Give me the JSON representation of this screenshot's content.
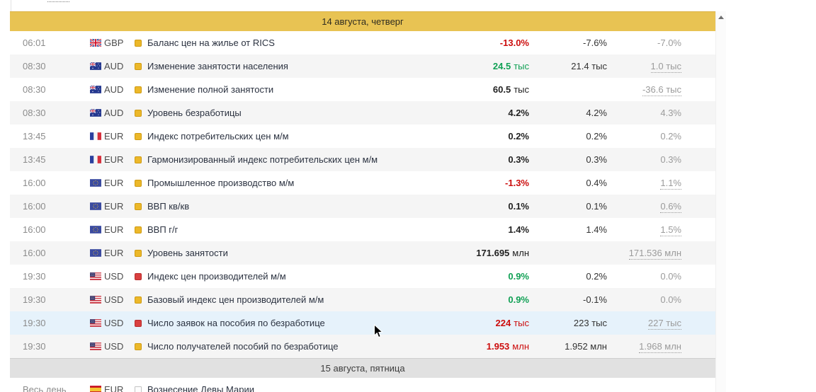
{
  "colors": {
    "day_header_gold": "#e8c353",
    "day_header_gray": "#e1e1e1",
    "actual_positive_green": "#10a054",
    "actual_negative_red": "#cc0d0d",
    "importance_medium_yellow": "#ecb82a",
    "importance_high_red": "#d94040",
    "highlighted_row_blue": "#e6f2fb"
  },
  "scrollbar": {
    "up_arrow_icon": "scroll-up-icon"
  },
  "days": [
    {
      "header": "14 августа, четверг",
      "style": "gold",
      "events": [
        {
          "time": "06:01",
          "flag": "gb",
          "currency": "GBP",
          "importance": "medium",
          "name": "Баланс цен на жилье от RICS",
          "actual": {
            "v": "-13.0%",
            "u": "",
            "c": "red"
          },
          "forecast": "-7.6%",
          "previous": {
            "v": "-7.0%",
            "revised": false
          }
        },
        {
          "time": "08:30",
          "flag": "au",
          "currency": "AUD",
          "importance": "medium",
          "name": "Изменение занятости населения",
          "actual": {
            "v": "24.5",
            "u": "тыс",
            "c": "green"
          },
          "forecast": "21.4 тыс",
          "previous": {
            "v": "1.0 тыс",
            "revised": true
          }
        },
        {
          "time": "08:30",
          "flag": "au",
          "currency": "AUD",
          "importance": "medium",
          "name": "Изменение полной занятости",
          "actual": {
            "v": "60.5",
            "u": "тыс",
            "c": "black"
          },
          "forecast": "",
          "previous": {
            "v": "-36.6 тыс",
            "revised": true
          }
        },
        {
          "time": "08:30",
          "flag": "au",
          "currency": "AUD",
          "importance": "medium",
          "name": "Уровень безработицы",
          "actual": {
            "v": "4.2%",
            "u": "",
            "c": "black"
          },
          "forecast": "4.2%",
          "previous": {
            "v": "4.3%",
            "revised": false
          }
        },
        {
          "time": "13:45",
          "flag": "fr",
          "currency": "EUR",
          "importance": "medium",
          "name": "Индекс потребительских цен м/м",
          "actual": {
            "v": "0.2%",
            "u": "",
            "c": "black"
          },
          "forecast": "0.2%",
          "previous": {
            "v": "0.2%",
            "revised": false
          }
        },
        {
          "time": "13:45",
          "flag": "fr",
          "currency": "EUR",
          "importance": "medium",
          "name": "Гармонизированный индекс потребительских цен м/м",
          "actual": {
            "v": "0.3%",
            "u": "",
            "c": "black"
          },
          "forecast": "0.3%",
          "previous": {
            "v": "0.3%",
            "revised": false
          }
        },
        {
          "time": "16:00",
          "flag": "eu",
          "currency": "EUR",
          "importance": "medium",
          "name": "Промышленное производство м/м",
          "actual": {
            "v": "-1.3%",
            "u": "",
            "c": "red"
          },
          "forecast": "0.4%",
          "previous": {
            "v": "1.1%",
            "revised": true
          }
        },
        {
          "time": "16:00",
          "flag": "eu",
          "currency": "EUR",
          "importance": "medium",
          "name": "ВВП кв/кв",
          "actual": {
            "v": "0.1%",
            "u": "",
            "c": "black"
          },
          "forecast": "0.1%",
          "previous": {
            "v": "0.6%",
            "revised": true
          }
        },
        {
          "time": "16:00",
          "flag": "eu",
          "currency": "EUR",
          "importance": "medium",
          "name": "ВВП г/г",
          "actual": {
            "v": "1.4%",
            "u": "",
            "c": "black"
          },
          "forecast": "1.4%",
          "previous": {
            "v": "1.5%",
            "revised": true
          }
        },
        {
          "time": "16:00",
          "flag": "eu",
          "currency": "EUR",
          "importance": "medium",
          "name": "Уровень занятости",
          "actual": {
            "v": "171.695",
            "u": "млн",
            "c": "black"
          },
          "forecast": "",
          "previous": {
            "v": "171.536 млн",
            "revised": true
          }
        },
        {
          "time": "19:30",
          "flag": "us",
          "currency": "USD",
          "importance": "high",
          "name": "Индекс цен производителей м/м",
          "actual": {
            "v": "0.9%",
            "u": "",
            "c": "green"
          },
          "forecast": "0.2%",
          "previous": {
            "v": "0.0%",
            "revised": false
          }
        },
        {
          "time": "19:30",
          "flag": "us",
          "currency": "USD",
          "importance": "medium",
          "name": "Базовый индекс цен производителей м/м",
          "actual": {
            "v": "0.9%",
            "u": "",
            "c": "green"
          },
          "forecast": "-0.1%",
          "previous": {
            "v": "0.0%",
            "revised": false
          }
        },
        {
          "time": "19:30",
          "flag": "us",
          "currency": "USD",
          "importance": "high",
          "name": "Число заявок на пособия по безработице",
          "highlighted": true,
          "actual": {
            "v": "224",
            "u": "тыс",
            "c": "red"
          },
          "forecast": "223 тыс",
          "previous": {
            "v": "227 тыс",
            "revised": true
          }
        },
        {
          "time": "19:30",
          "flag": "us",
          "currency": "USD",
          "importance": "medium",
          "name": "Число получателей пособий по безработице",
          "actual": {
            "v": "1.953",
            "u": "млн",
            "c": "red"
          },
          "forecast": "1.952 млн",
          "previous": {
            "v": "1.968 млн",
            "revised": true
          }
        }
      ]
    },
    {
      "header": "15 августа, пятница",
      "style": "gray",
      "events": [
        {
          "time": "Весь день",
          "flag": "es",
          "currency": "EUR",
          "importance": "holiday",
          "name": "Вознесение Девы Марии",
          "actual": {
            "v": "",
            "u": "",
            "c": "black"
          },
          "forecast": "",
          "previous": {
            "v": "",
            "revised": false
          }
        }
      ]
    }
  ]
}
